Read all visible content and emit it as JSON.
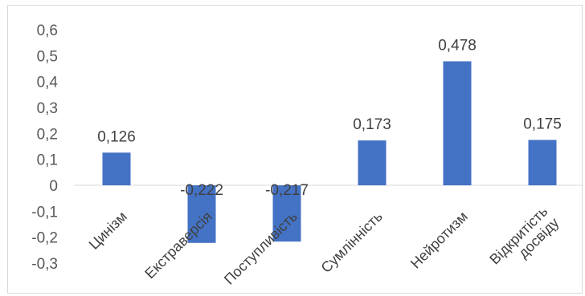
{
  "chart_data": {
    "type": "bar",
    "title": "",
    "xlabel": "",
    "ylabel": "",
    "categories": [
      "Цинізм",
      "Екстраверсія",
      "Поступливість",
      "Сумлінність",
      "Нейротизм",
      "Відкритість досвіду"
    ],
    "values": [
      0.126,
      -0.222,
      -0.217,
      0.173,
      0.478,
      0.175
    ],
    "data_labels": [
      "0,126",
      "-0,222",
      "-0,217",
      "0,173",
      "0,478",
      "0,175"
    ],
    "yticks": [
      0.6,
      0.5,
      0.4,
      0.3,
      0.2,
      0.1,
      0,
      -0.1,
      -0.2,
      -0.3
    ],
    "ytick_labels": [
      "0,6",
      "0,5",
      "0,4",
      "0,3",
      "0,2",
      "0,1",
      "0",
      "-0,1",
      "-0,2",
      "-0,3"
    ],
    "ylim": [
      -0.3,
      0.6
    ],
    "grid": false,
    "legend": "none",
    "bar_color": "#4472C4"
  }
}
